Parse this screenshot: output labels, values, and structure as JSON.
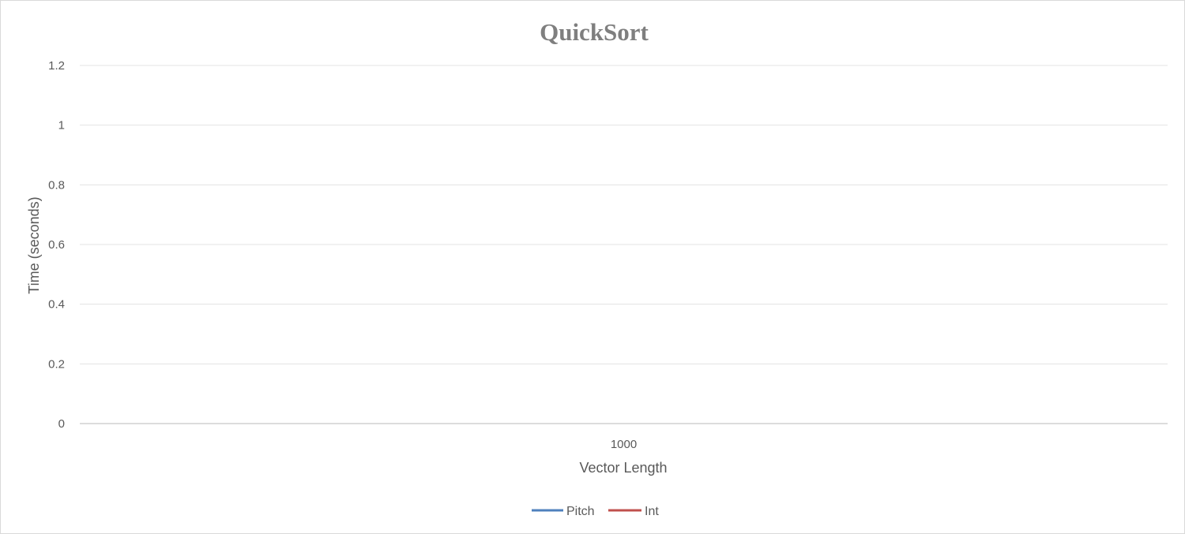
{
  "chart_data": {
    "type": "line",
    "title": "QuickSort",
    "xlabel": "Vector Length",
    "ylabel": "Time (seconds)",
    "categories": [
      "1000"
    ],
    "ylim": [
      0,
      1.2
    ],
    "yticks": [
      "0",
      "0.2",
      "0.4",
      "0.6",
      "0.8",
      "1",
      "1.2"
    ],
    "grid": true,
    "legend_position": "bottom",
    "series": [
      {
        "name": "Pitch",
        "color": "#4f81bd",
        "values": [
          0
        ]
      },
      {
        "name": "Int",
        "color": "#c0504d",
        "values": [
          0
        ]
      }
    ]
  }
}
